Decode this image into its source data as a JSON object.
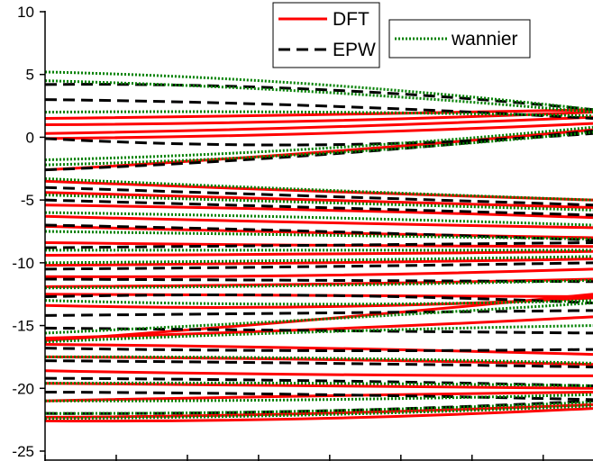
{
  "chart_data": {
    "type": "line",
    "ylim": [
      -25,
      10
    ],
    "y_ticks": [
      10,
      5,
      0,
      -5,
      -10,
      -15,
      -20,
      -25
    ],
    "y_tick_labels": [
      "10",
      "5",
      "0",
      "-5",
      "-10",
      "-15",
      "-20",
      "-25"
    ],
    "x_tick_count": 8,
    "x_tick_labels": [],
    "grid": false,
    "series": [
      {
        "name": "DFT",
        "style": "solid",
        "color": "#ff0000",
        "bands": [
          [
            1.0,
            1.3,
            2.0
          ],
          [
            1.5,
            1.8,
            2.2
          ],
          [
            0.3,
            0.8,
            1.6
          ],
          [
            -0.1,
            0.3,
            1.1
          ],
          [
            -2.6,
            -1.2,
            0.6
          ],
          [
            -3.5,
            -4.3,
            -5.0
          ],
          [
            -4.4,
            -5.0,
            -5.6
          ],
          [
            -5.4,
            -5.8,
            -6.4
          ],
          [
            -6.3,
            -6.8,
            -7.2
          ],
          [
            -7.1,
            -7.6,
            -8.0
          ],
          [
            -8.4,
            -8.6,
            -8.7
          ],
          [
            -9.4,
            -9.3,
            -9.1
          ],
          [
            -10.2,
            -10.0,
            -9.7
          ],
          [
            -11.1,
            -11.0,
            -10.5
          ],
          [
            -11.9,
            -11.7,
            -11.3
          ],
          [
            -12.5,
            -12.6,
            -12.7
          ],
          [
            -13.4,
            -13.5,
            -12.8
          ],
          [
            -16.2,
            -14.5,
            -12.5
          ],
          [
            -16.0,
            -15.3,
            -14.3
          ],
          [
            -16.5,
            -16.8,
            -17.3
          ],
          [
            -17.5,
            -17.7,
            -18.1
          ],
          [
            -18.6,
            -18.9,
            -19.0
          ],
          [
            -19.6,
            -19.8,
            -20.0
          ],
          [
            -21.0,
            -20.6,
            -20.3
          ],
          [
            -22.3,
            -22.0,
            -21.3
          ],
          [
            -22.6,
            -22.4,
            -21.6
          ]
        ]
      },
      {
        "name": "EPW",
        "style": "dash",
        "color": "#000000",
        "bands": [
          [
            4.2,
            3.8,
            2.2
          ],
          [
            3.0,
            2.5,
            1.5
          ],
          [
            -0.1,
            -0.6,
            0.3
          ],
          [
            -2.6,
            -1.4,
            0.5
          ],
          [
            -4.0,
            -4.7,
            -5.4
          ],
          [
            -5.0,
            -5.6,
            -6.2
          ],
          [
            -7.0,
            -7.5,
            -8.2
          ],
          [
            -8.8,
            -8.6,
            -8.4
          ],
          [
            -10.5,
            -10.3,
            -10.0
          ],
          [
            -11.3,
            -11.4,
            -11.5
          ],
          [
            -12.7,
            -12.6,
            -13.2
          ],
          [
            -14.2,
            -14.0,
            -13.8
          ],
          [
            -15.2,
            -15.4,
            -15.6
          ],
          [
            -16.8,
            -17.0,
            -16.9
          ],
          [
            -17.8,
            -18.0,
            -18.3
          ],
          [
            -19.2,
            -19.4,
            -19.8
          ],
          [
            -20.3,
            -20.5,
            -20.9
          ],
          [
            -22.0,
            -21.8,
            -21.0
          ]
        ]
      },
      {
        "name": "wannier",
        "style": "dot",
        "color": "#008000",
        "bands": [
          [
            5.2,
            4.2,
            2.2
          ],
          [
            4.5,
            3.6,
            2.0
          ],
          [
            2.0,
            2.0,
            1.7
          ],
          [
            -1.8,
            -0.9,
            0.8
          ],
          [
            -2.2,
            -1.3,
            0.4
          ],
          [
            -3.3,
            -4.2,
            -5.0
          ],
          [
            -4.6,
            -5.2,
            -5.8
          ],
          [
            -6.0,
            -6.4,
            -7.0
          ],
          [
            -7.5,
            -7.8,
            -8.1
          ],
          [
            -9.0,
            -9.0,
            -9.0
          ],
          [
            -10.0,
            -9.8,
            -9.5
          ],
          [
            -12.0,
            -11.8,
            -11.4
          ],
          [
            -13.0,
            -13.3,
            -13.0
          ],
          [
            -15.6,
            -14.5,
            -13.2
          ],
          [
            -16.3,
            -15.5,
            -15.0
          ],
          [
            -17.5,
            -17.6,
            -18.0
          ],
          [
            -19.6,
            -19.6,
            -19.8
          ],
          [
            -21.0,
            -20.9,
            -20.5
          ],
          [
            -22.0,
            -21.8,
            -21.1
          ],
          [
            -22.4,
            -22.1,
            -21.4
          ]
        ]
      }
    ],
    "legend": {
      "entries": [
        "DFT",
        "EPW",
        "wannier"
      ],
      "placement": "top"
    }
  }
}
